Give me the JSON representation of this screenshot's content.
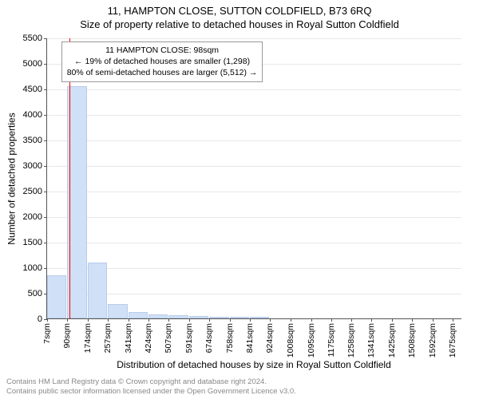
{
  "title_main": "11, HAMPTON CLOSE, SUTTON COLDFIELD, B73 6RQ",
  "title_sub": "Size of property relative to detached houses in Royal Sutton Coldfield",
  "y_axis_label": "Number of detached properties",
  "x_axis_label": "Distribution of detached houses by size in Royal Sutton Coldfield",
  "chart": {
    "type": "histogram",
    "ylim": [
      0,
      5500
    ],
    "ytick_step": 500,
    "yticks": [
      0,
      500,
      1000,
      1500,
      2000,
      2500,
      3000,
      3500,
      4000,
      4500,
      5000,
      5500
    ],
    "xlim": [
      7,
      1715
    ],
    "xticks": [
      7,
      90,
      174,
      257,
      341,
      424,
      507,
      591,
      674,
      758,
      841,
      924,
      1008,
      1095,
      1175,
      1258,
      1341,
      1425,
      1508,
      1592,
      1675
    ],
    "xtick_suffix": "sqm",
    "bar_color": "#cfe0f7",
    "bar_border": "#b9cdea",
    "bars": [
      850,
      4550,
      1100,
      280,
      130,
      80,
      60,
      40,
      30,
      20,
      15,
      10,
      8,
      6,
      4,
      3,
      2,
      2,
      1,
      1
    ],
    "marker_value": 98,
    "marker_color": "#ff0000",
    "grid_color": "#e8e8e8",
    "background_color": "#ffffff"
  },
  "info_box": {
    "line1": "11 HAMPTON CLOSE: 98sqm",
    "line2": "← 19% of detached houses are smaller (1,298)",
    "line3": "80% of semi-detached houses are larger (5,512) →"
  },
  "footer": {
    "line1": "Contains HM Land Registry data © Crown copyright and database right 2024.",
    "line2": "Contains public sector information licensed under the Open Government Licence v3.0."
  }
}
